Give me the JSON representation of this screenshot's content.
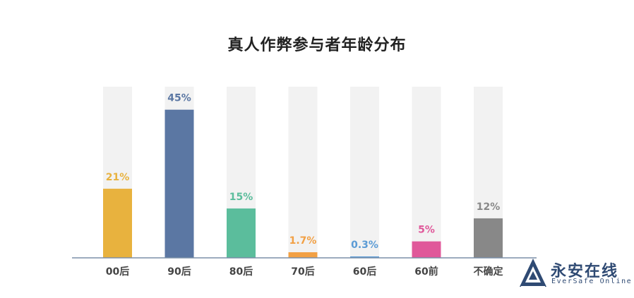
{
  "chart_data": {
    "type": "bar",
    "title": "真人作弊参与者年龄分布",
    "categories": [
      "00后",
      "90后",
      "80后",
      "70后",
      "60后",
      "60前",
      "不确定"
    ],
    "values": [
      21,
      45,
      15,
      1.7,
      0.3,
      5,
      12
    ],
    "value_labels": [
      "21%",
      "45%",
      "15%",
      "1.7%",
      "0.3%",
      "5%",
      "12%"
    ],
    "colors": [
      "#e8b23e",
      "#5b77a3",
      "#5bbd9c",
      "#f2a044",
      "#5b9bd5",
      "#e0589a",
      "#888888"
    ],
    "ylim": [
      0,
      52
    ],
    "grid": false,
    "legend": "none",
    "background_bar_color": "#f2f2f2"
  },
  "logo": {
    "name_cn": "永安在线",
    "name_en": "EverSafe Online",
    "color": "#2f4a73"
  }
}
